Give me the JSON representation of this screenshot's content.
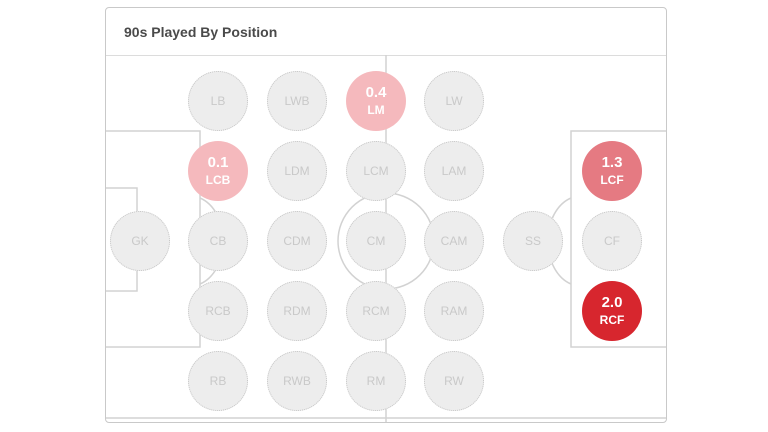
{
  "title": "90s Played By Position",
  "positions": [
    {
      "label": "GK",
      "value": ""
    },
    {
      "label": "LB",
      "value": ""
    },
    {
      "label": "LCB",
      "value": "0.1"
    },
    {
      "label": "CB",
      "value": ""
    },
    {
      "label": "RCB",
      "value": ""
    },
    {
      "label": "RB",
      "value": ""
    },
    {
      "label": "LWB",
      "value": ""
    },
    {
      "label": "LDM",
      "value": ""
    },
    {
      "label": "CDM",
      "value": ""
    },
    {
      "label": "RDM",
      "value": ""
    },
    {
      "label": "RWB",
      "value": ""
    },
    {
      "label": "LM",
      "value": "0.4"
    },
    {
      "label": "LCM",
      "value": ""
    },
    {
      "label": "CM",
      "value": ""
    },
    {
      "label": "RCM",
      "value": ""
    },
    {
      "label": "RM",
      "value": ""
    },
    {
      "label": "LW",
      "value": ""
    },
    {
      "label": "LAM",
      "value": ""
    },
    {
      "label": "CAM",
      "value": ""
    },
    {
      "label": "RAM",
      "value": ""
    },
    {
      "label": "RW",
      "value": ""
    },
    {
      "label": "SS",
      "value": ""
    },
    {
      "label": "LCF",
      "value": "1.3"
    },
    {
      "label": "CF",
      "value": ""
    },
    {
      "label": "RCF",
      "value": "2.0"
    }
  ],
  "colors": {
    "low": "#f5b9bd",
    "mid": "#e57a82",
    "high": "#d7262e"
  }
}
